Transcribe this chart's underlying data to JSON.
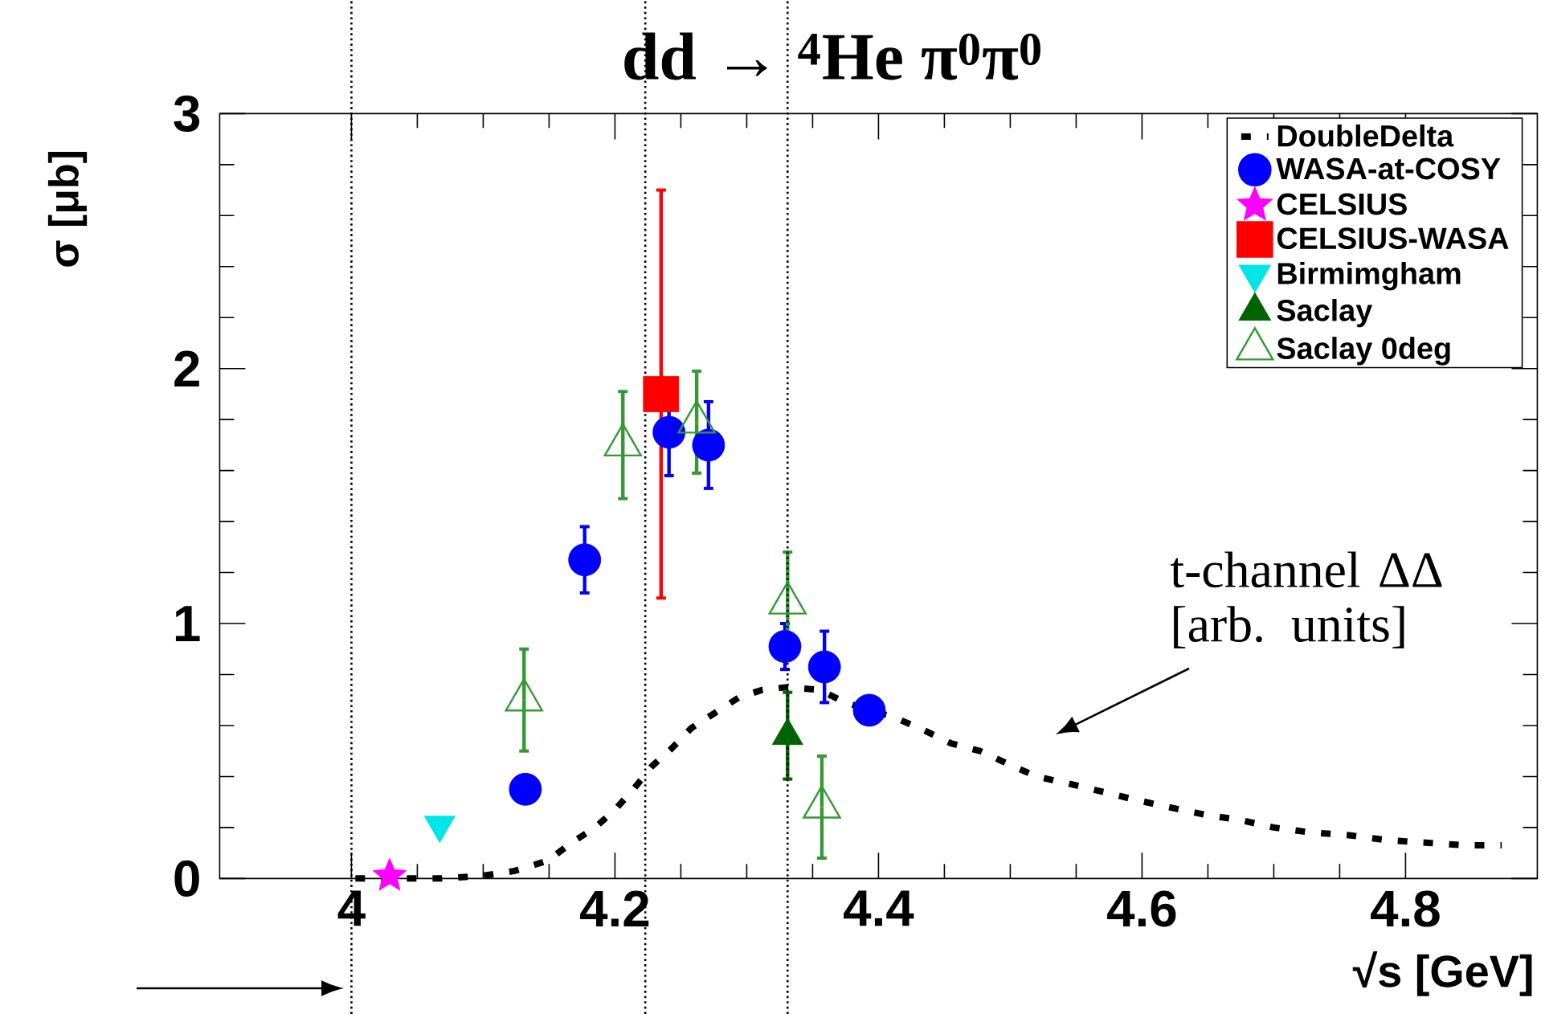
{
  "chart_data": {
    "type": "scatter",
    "title": "dd → $^{4}$He π$^{0}$π$^{0}$",
    "xlabel": "√s [GeV]",
    "ylabel": "σ [μb]",
    "xlim": [
      3.9,
      4.9
    ],
    "ylim": [
      0,
      3
    ],
    "xticks": [
      4,
      4.2,
      4.4,
      4.6,
      4.8
    ],
    "yticks": [
      0,
      1,
      2,
      3
    ],
    "grid": false,
    "legend": "top right",
    "ref_lines": [
      {
        "axis": "x",
        "value": 4.0,
        "color": "#000000",
        "line_style": "dotted"
      },
      {
        "axis": "x",
        "value": 4.223,
        "color": "#000000",
        "line_style": "dotted"
      },
      {
        "axis": "x",
        "value": 4.331,
        "color": "#000000",
        "line_style": "dotted"
      }
    ],
    "annotations": [
      "t-channel ΔΔ [arb. units]"
    ],
    "series": [
      {
        "name": "DoubleDelta",
        "type": "line",
        "color": "#000000",
        "line_style": "dashed",
        "marker": "none",
        "x": [
          4.003,
          4.067,
          4.099,
          4.124,
          4.149,
          4.167,
          4.185,
          4.2,
          4.214,
          4.228,
          4.243,
          4.258,
          4.276,
          4.294,
          4.312,
          4.33,
          4.355,
          4.375,
          4.413,
          4.435,
          4.455,
          4.477,
          4.498,
          4.52,
          4.546,
          4.57,
          4.594,
          4.62,
          4.648,
          4.674,
          4.7,
          4.729,
          4.757,
          4.787,
          4.817,
          4.845,
          4.873
        ],
        "values": [
          0,
          0,
          0.01,
          0.03,
          0.07,
          0.14,
          0.2,
          0.27,
          0.35,
          0.44,
          0.51,
          0.59,
          0.65,
          0.71,
          0.74,
          0.75,
          0.74,
          0.69,
          0.63,
          0.58,
          0.53,
          0.5,
          0.45,
          0.4,
          0.37,
          0.34,
          0.31,
          0.28,
          0.25,
          0.23,
          0.2,
          0.18,
          0.17,
          0.15,
          0.14,
          0.13,
          0.13
        ]
      },
      {
        "name": "WASA-at-COSY",
        "color": "#0000ff",
        "marker": "circle",
        "x": [
          4.132,
          4.177,
          4.241,
          4.271,
          4.329,
          4.359,
          4.393
        ],
        "values": [
          0.35,
          1.25,
          1.75,
          1.7,
          0.91,
          0.83,
          0.66
        ],
        "errors": [
          0.03,
          0.13,
          0.17,
          0.17,
          0.09,
          0.14,
          0.03
        ]
      },
      {
        "name": "CELSIUS",
        "color": "#ff00ff",
        "marker": "star",
        "x": [
          4.029
        ],
        "values": [
          0.01
        ]
      },
      {
        "name": "CELSIUS-WASA",
        "color": "#ff0000",
        "marker": "square",
        "x": [
          4.235
        ],
        "values": [
          1.9
        ],
        "errors": [
          0.8
        ]
      },
      {
        "name": "Birmimgham",
        "color": "#00e5e5",
        "marker": "triangle-down",
        "x": [
          4.067
        ],
        "values": [
          0.21
        ]
      },
      {
        "name": "Saclay",
        "color": "#006400",
        "marker": "triangle",
        "x": [
          4.331
        ],
        "values": [
          0.56
        ],
        "errors": [
          0.17
        ]
      },
      {
        "name": "Saclay 0deg",
        "color": "#339933",
        "marker": "triangle-open",
        "x": [
          4.131,
          4.206,
          4.262,
          4.331,
          4.357
        ],
        "values": [
          0.7,
          1.7,
          1.79,
          1.08,
          0.28
        ],
        "errors": [
          0.2,
          0.21,
          0.2,
          0.2,
          0.2
        ]
      }
    ]
  }
}
